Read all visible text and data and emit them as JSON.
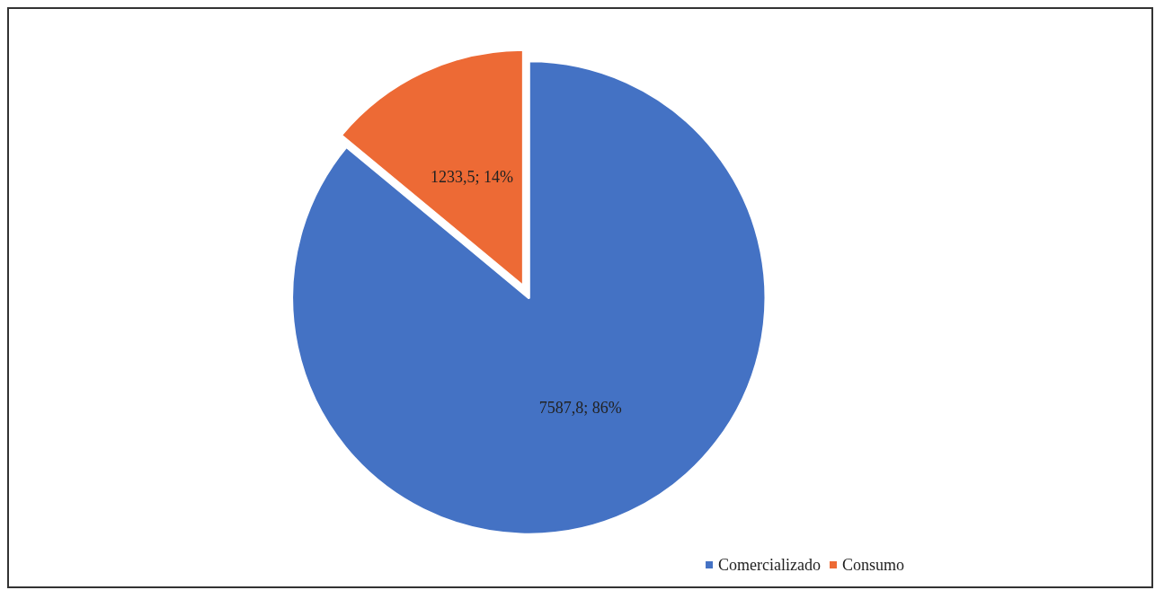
{
  "chart_data": {
    "type": "pie",
    "categories": [
      "Comercializado",
      "Consumo"
    ],
    "values": [
      7587.8,
      1233.5
    ],
    "colors": [
      "#4472c4",
      "#ed6a35"
    ],
    "value_labels": [
      "7587,8; 86%",
      "1233,5; 14%"
    ],
    "legend": "bottom right"
  }
}
